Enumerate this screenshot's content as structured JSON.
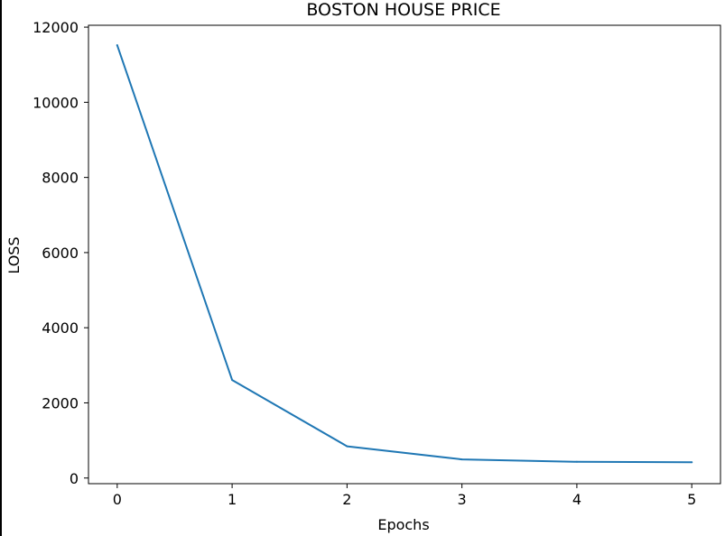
{
  "chart_data": {
    "type": "line",
    "title": "BOSTON HOUSE PRICE",
    "xlabel": "Epochs",
    "ylabel": "LOSS",
    "x": [
      0,
      1,
      2,
      3,
      4,
      5
    ],
    "series": [
      {
        "values": [
          11520,
          2610,
          845,
          495,
          430,
          420
        ],
        "color": "#1f77b4"
      }
    ],
    "xlim": [
      -0.25,
      5.25
    ],
    "ylim": [
      -150,
      12050
    ],
    "xticks": [
      0,
      1,
      2,
      3,
      4,
      5
    ],
    "yticks": [
      0,
      2000,
      4000,
      6000,
      8000,
      10000,
      12000
    ],
    "grid": false,
    "legend": "none"
  }
}
